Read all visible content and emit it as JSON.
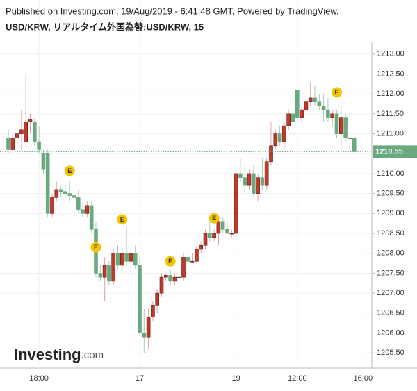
{
  "header": {
    "published": "Published on Investing.com, 19/Aug/2019 - 6:41:48 GMT, Powered by TradingView.",
    "logo": "Investing",
    "logo_suffix": ".com"
  },
  "chart_data": {
    "type": "candlestick",
    "title": "USD/KRW, リアルタイム外国為替:USD/KRW, 15",
    "categories": [
      null,
      null,
      null,
      null,
      null,
      null,
      null,
      "18:00",
      null,
      null,
      null,
      null,
      null,
      null,
      null,
      null,
      null,
      null,
      null,
      null,
      null,
      null,
      null,
      null,
      null,
      null,
      null,
      null,
      null,
      null,
      "17",
      null,
      null,
      null,
      null,
      null,
      null,
      null,
      null,
      null,
      null,
      null,
      null,
      null,
      null,
      null,
      null,
      null,
      null,
      null,
      null,
      null,
      "19",
      null,
      null,
      null,
      null,
      null,
      null,
      null,
      null,
      null,
      null,
      null,
      null,
      null,
      "12:00",
      null,
      null,
      null,
      null,
      null,
      null,
      null,
      null,
      null,
      null,
      null,
      null,
      null,
      null,
      "16:00"
    ],
    "open": [
      1210.9,
      1210.6,
      1210.9,
      1211.0,
      1210.8,
      1211.3,
      1211.3,
      1210.8,
      1210.5,
      1210.5,
      1209.0,
      1209.4,
      1209.6,
      1209.55,
      1209.5,
      1209.45,
      1209.4,
      1209.1,
      1209.0,
      1209.2,
      1208.6,
      1207.5,
      1207.4,
      1207.7,
      1207.3,
      1208.0,
      1207.7,
      1208.0,
      1207.8,
      1208.0,
      1207.7,
      1206.0,
      1205.9,
      1206.4,
      1206.7,
      1207.0,
      1207.4,
      1207.45,
      1207.3,
      1207.4,
      1207.4,
      1207.9,
      1207.8,
      1207.8,
      1208.1,
      1208.2,
      1208.5,
      1208.4,
      1208.5,
      1208.8,
      1208.6,
      1208.5,
      1208.5,
      1210.0,
      1209.9,
      1209.7,
      1210.0,
      1209.5,
      1209.9,
      1209.7,
      1210.3,
      1210.7,
      1211.0,
      1210.8,
      1211.2,
      1211.5,
      1212.1,
      1211.4,
      1211.6,
      1211.8,
      1211.9,
      1211.8,
      1211.7,
      1211.6,
      1211.4,
      1211.5,
      1211.0,
      1211.4,
      1210.9,
      1210.9,
      null,
      null
    ],
    "high": [
      1211.1,
      1211.0,
      1211.3,
      1211.6,
      1212.5,
      1211.5,
      1211.4,
      1211.2,
      1210.6,
      1210.6,
      1209.5,
      1209.8,
      1209.7,
      1209.7,
      1209.8,
      1209.7,
      1209.6,
      1209.3,
      1209.3,
      1209.3,
      1208.8,
      1207.7,
      1207.9,
      1207.8,
      1208.1,
      1208.2,
      1208.1,
      1208.7,
      1208.1,
      1208.2,
      1207.9,
      1206.6,
      1206.6,
      1206.8,
      1207.1,
      1207.5,
      1207.5,
      1207.6,
      1207.5,
      1207.45,
      1208.0,
      1208.0,
      1208.0,
      1208.2,
      1208.3,
      1208.6,
      1208.8,
      1208.6,
      1208.9,
      1208.9,
      1208.8,
      1208.6,
      1210.1,
      1210.4,
      1210.2,
      1210.1,
      1210.2,
      1210.0,
      1210.4,
      1210.4,
      1211.3,
      1211.1,
      1211.2,
      1211.3,
      1211.6,
      1211.7,
      1212.1,
      1211.7,
      1212.0,
      1212.3,
      1212.2,
      1212.0,
      1212.0,
      1211.9,
      1211.6,
      1211.6,
      1211.7,
      1211.5,
      1211.2,
      1211.0,
      null,
      null
    ],
    "low": [
      1210.5,
      1210.5,
      1210.7,
      1210.6,
      1210.7,
      1211.0,
      1210.7,
      1210.5,
      1210.0,
      1208.9,
      1208.9,
      1209.3,
      1209.4,
      1209.4,
      1209.3,
      1209.3,
      1209.0,
      1208.9,
      1208.9,
      1208.5,
      1207.4,
      1207.3,
      1206.8,
      1207.2,
      1207.2,
      1207.6,
      1207.5,
      1207.7,
      1207.5,
      1207.6,
      1206.0,
      1205.5,
      1205.6,
      1206.3,
      1206.5,
      1206.9,
      1207.3,
      1207.2,
      1207.2,
      1207.35,
      1207.3,
      1207.7,
      1207.75,
      1207.75,
      1208.0,
      1208.1,
      1208.3,
      1208.3,
      1208.2,
      1208.5,
      1208.5,
      1208.4,
      1208.4,
      1209.8,
      1209.5,
      1209.6,
      1209.4,
      1209.3,
      1209.6,
      1209.6,
      1210.2,
      1210.6,
      1210.7,
      1210.6,
      1211.1,
      1211.2,
      1211.3,
      1211.3,
      1211.5,
      1211.7,
      1211.7,
      1211.6,
      1211.3,
      1211.3,
      1211.2,
      1210.9,
      1210.6,
      1210.8,
      1210.6,
      1210.55,
      null,
      null
    ],
    "close": [
      1210.6,
      1210.9,
      1211.0,
      1211.1,
      1211.3,
      1211.35,
      1210.8,
      1210.6,
      1210.1,
      1209.0,
      1209.4,
      1209.6,
      1209.55,
      1209.5,
      1209.45,
      1209.4,
      1209.1,
      1209.0,
      1209.2,
      1208.6,
      1207.5,
      1207.4,
      1207.7,
      1207.3,
      1208.0,
      1207.7,
      1208.0,
      1207.8,
      1208.0,
      1207.7,
      1206.0,
      1205.9,
      1206.4,
      1206.7,
      1207.0,
      1207.4,
      1207.45,
      1207.3,
      1207.4,
      1207.4,
      1207.9,
      1207.8,
      1207.8,
      1208.1,
      1208.2,
      1208.5,
      1208.4,
      1208.5,
      1208.8,
      1208.6,
      1208.5,
      1208.5,
      1210.0,
      1209.9,
      1209.7,
      1210.0,
      1209.5,
      1209.9,
      1209.7,
      1210.3,
      1210.7,
      1211.0,
      1210.8,
      1211.2,
      1211.5,
      1211.3,
      1211.4,
      1211.6,
      1211.8,
      1211.9,
      1211.8,
      1211.7,
      1211.6,
      1211.4,
      1211.5,
      1211.0,
      1211.4,
      1210.9,
      1210.9,
      1210.55,
      null,
      null
    ],
    "up_color": "#c0392b",
    "down_color": "#6aa87f",
    "ylim": [
      1205.12,
      1213.31
    ],
    "yticks": [
      {
        "value": 1205.5,
        "label": "1205.50"
      },
      {
        "value": 1206,
        "label": "1206.00"
      },
      {
        "value": 1206.5,
        "label": "1206.50"
      },
      {
        "value": 1207,
        "label": "1207.00"
      },
      {
        "value": 1207.5,
        "label": "1207.50"
      },
      {
        "value": 1208,
        "label": "1208.00"
      },
      {
        "value": 1208.5,
        "label": "1208.50"
      },
      {
        "value": 1209,
        "label": "1209.00"
      },
      {
        "value": 1209.5,
        "label": "1209.50"
      },
      {
        "value": 1210,
        "label": "1210.00"
      },
      {
        "value": 1210.5,
        "label": "1210.50"
      },
      {
        "value": 1211,
        "label": "1211.00"
      },
      {
        "value": 1211.5,
        "label": "1211.50"
      },
      {
        "value": 1212,
        "label": "1212.00"
      },
      {
        "value": 1212.5,
        "label": "1212.50"
      },
      {
        "value": 1213,
        "label": "1213.00"
      }
    ],
    "grid": true,
    "last_price": 1210.55,
    "events": [
      {
        "label": "E",
        "index": 14,
        "price": 1210.07
      },
      {
        "label": "E",
        "index": 20,
        "price": 1208.15
      },
      {
        "label": "E",
        "index": 26,
        "price": 1208.85
      },
      {
        "label": "E",
        "index": 37,
        "price": 1207.8
      },
      {
        "label": "E",
        "index": 47,
        "price": 1208.88
      },
      {
        "label": "E",
        "index": 75,
        "price": 1212.04
      }
    ]
  }
}
